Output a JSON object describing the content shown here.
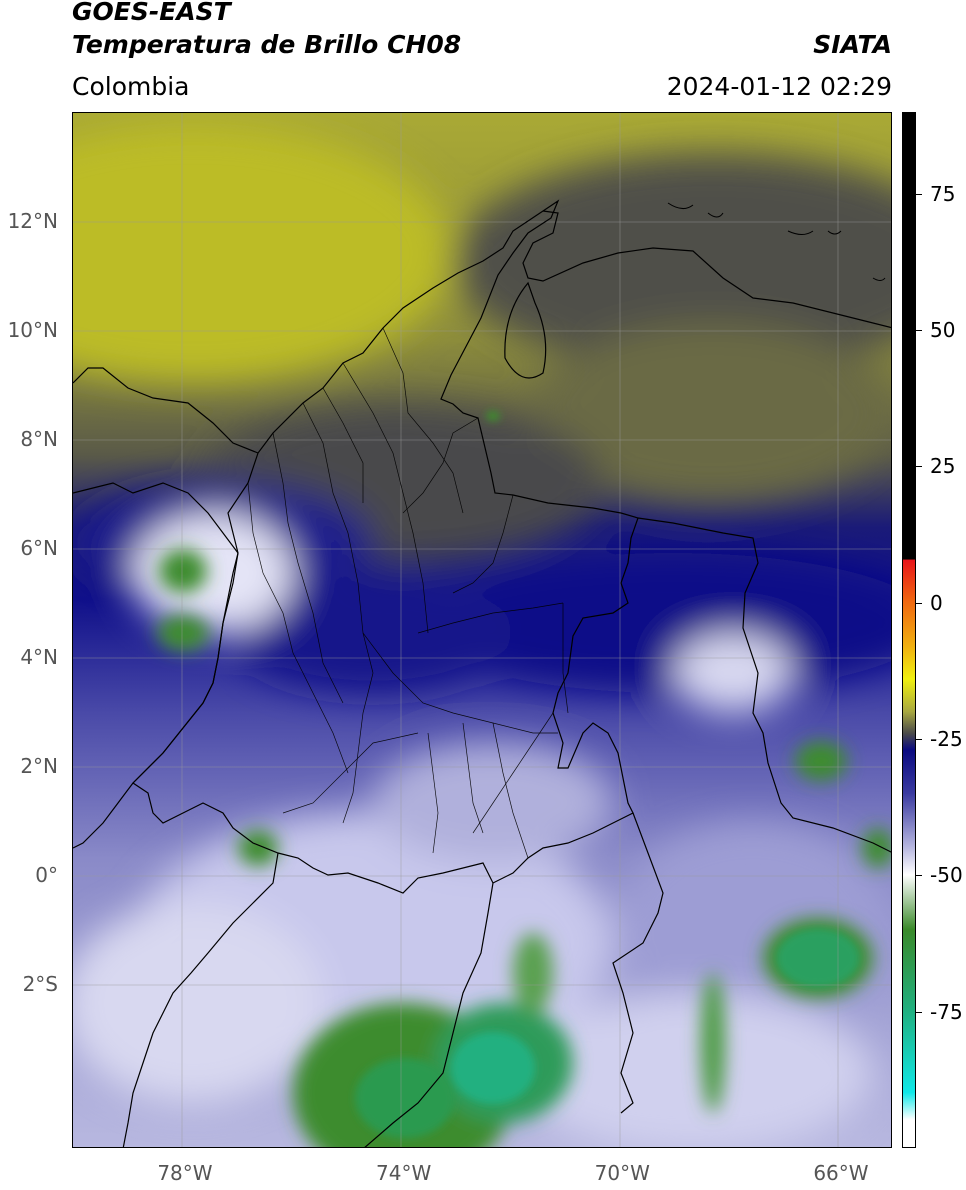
{
  "header": {
    "satellite": "GOES-EAST",
    "product": "Temperatura de Brillo CH08",
    "region": "Colombia",
    "source": "SIATA",
    "datetime": "2024-01-12 02:29"
  },
  "map": {
    "lon_range": [
      -80,
      -65
    ],
    "lat_range": [
      -5,
      14
    ],
    "lon_ticks": [
      {
        "value": -78,
        "label": "78°W"
      },
      {
        "value": -74,
        "label": "74°W"
      },
      {
        "value": -70,
        "label": "70°W"
      },
      {
        "value": -66,
        "label": "66°W"
      }
    ],
    "lat_ticks": [
      {
        "value": 12,
        "label": "12°N"
      },
      {
        "value": 10,
        "label": "10°N"
      },
      {
        "value": 8,
        "label": "8°N"
      },
      {
        "value": 6,
        "label": "6°N"
      },
      {
        "value": 4,
        "label": "4°N"
      },
      {
        "value": 2,
        "label": "2°N"
      },
      {
        "value": 0,
        "label": "0°"
      },
      {
        "value": -2,
        "label": "2°S"
      }
    ],
    "colorbar": {
      "range": [
        -100,
        90
      ],
      "ticks": [
        {
          "value": 75,
          "label": "75"
        },
        {
          "value": 50,
          "label": "50"
        },
        {
          "value": 25,
          "label": "25"
        },
        {
          "value": 0,
          "label": "0"
        },
        {
          "value": -25,
          "label": "-25"
        },
        {
          "value": -50,
          "label": "-50"
        },
        {
          "value": -75,
          "label": "-75"
        }
      ],
      "stops": [
        {
          "value": 90,
          "color": "#000000"
        },
        {
          "value": 8,
          "color": "#000000"
        },
        {
          "value": 7.9,
          "color": "#e8141a"
        },
        {
          "value": 0,
          "color": "#f06a10"
        },
        {
          "value": -8,
          "color": "#f0b010"
        },
        {
          "value": -14,
          "color": "#f0f010"
        },
        {
          "value": -20,
          "color": "#a8a840"
        },
        {
          "value": -24,
          "color": "#4a4a4a"
        },
        {
          "value": -27,
          "color": "#0a0a80"
        },
        {
          "value": -35,
          "color": "#3a3aa0"
        },
        {
          "value": -45,
          "color": "#b8b8e0"
        },
        {
          "value": -50,
          "color": "#ffffff"
        },
        {
          "value": -60,
          "color": "#3a8a2a"
        },
        {
          "value": -75,
          "color": "#20b080"
        },
        {
          "value": -90,
          "color": "#10e8e8"
        },
        {
          "value": -95,
          "color": "#ffffff"
        },
        {
          "value": -100,
          "color": "#ffffff"
        }
      ]
    }
  }
}
